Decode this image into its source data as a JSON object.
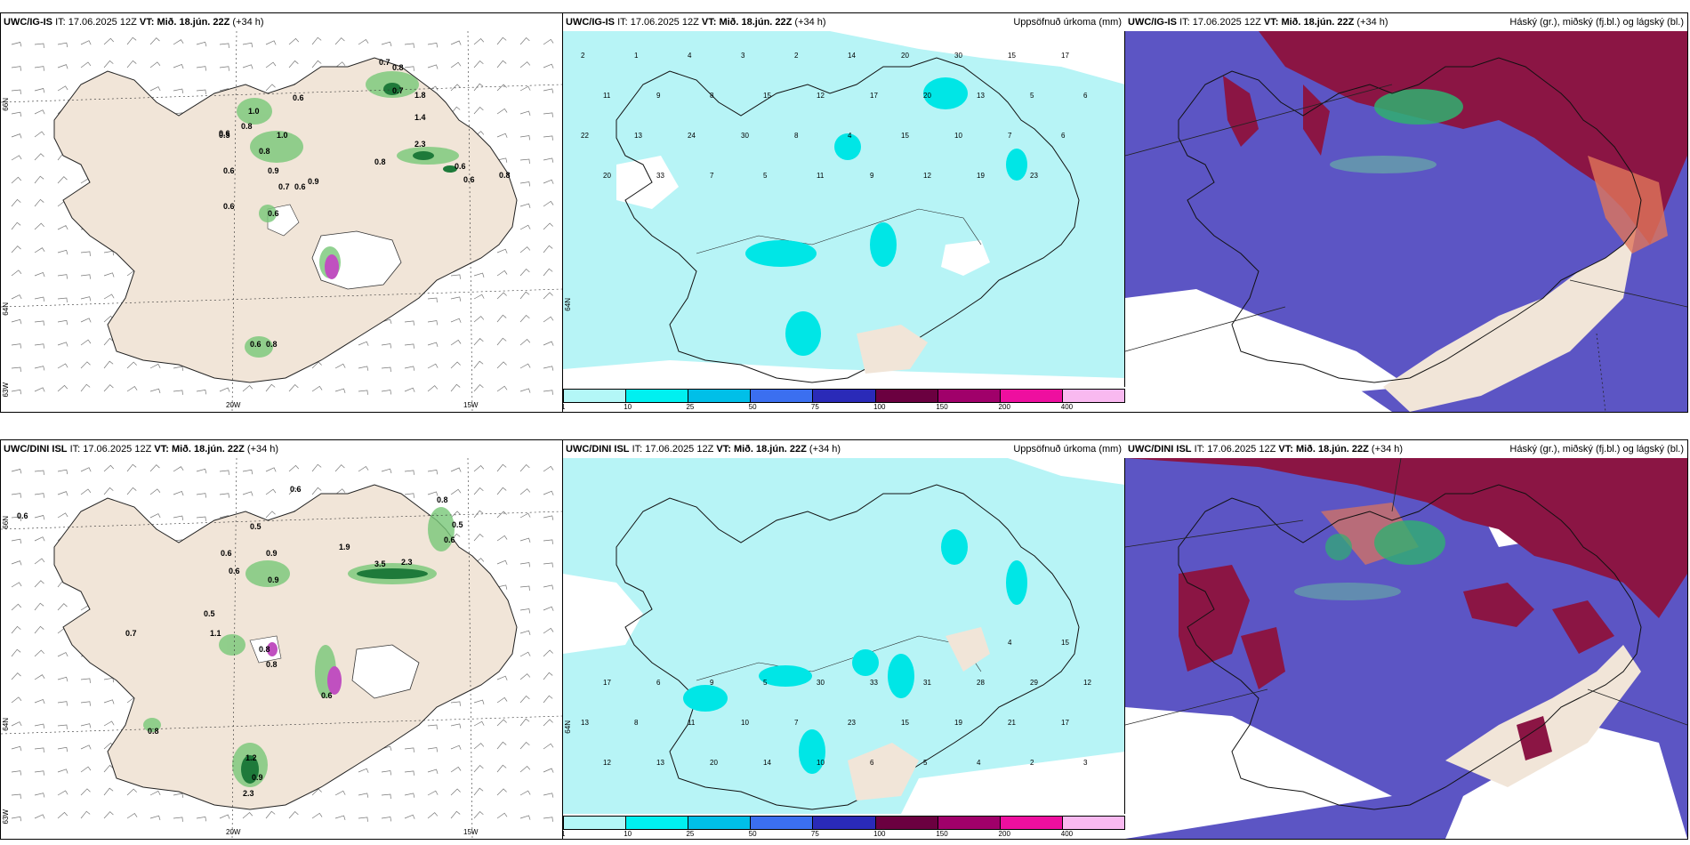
{
  "rows": [
    {
      "model": "UWC/IG-IS",
      "it_label": "IT:",
      "it_value": "17.06.2025 12Z",
      "vt_label": "VT:",
      "vt_value": "Mið. 18.jún. 22Z",
      "lead": "(+34 h)",
      "left_labels": {
        "lat_top": "66N",
        "lat_mid": "64N",
        "lat_bot": "63W",
        "lon_a": "20W",
        "lon_b": "15W"
      },
      "middle_title": "Uppsöfnuð úrkoma (mm)",
      "right_title": "Háský (gr.), miðský (fj.bl.) og lágský (bl.)",
      "mid_lat": "64N",
      "precip_values": [
        "0.7",
        "0.8",
        "0.6",
        "1.0",
        "0.8",
        "0.6",
        "0.7",
        "0.5",
        "1.0",
        "0.8",
        "1.8",
        "0.9",
        "0.6",
        "0.7",
        "0.6",
        "0.9",
        "0.8",
        "2.3",
        "0.6",
        "0.6",
        "0.8",
        "0.6",
        "0.6",
        "0.6",
        "0.8",
        "1.4"
      ],
      "accum_values": [
        "2",
        "1",
        "4",
        "3",
        "2",
        "14",
        "20",
        "30",
        "15",
        "17",
        "11",
        "9",
        "8",
        "15",
        "12",
        "17",
        "20",
        "13",
        "5",
        "6",
        "22",
        "13",
        "24",
        "30",
        "8",
        "4",
        "15",
        "10",
        "7",
        "6",
        "20",
        "33",
        "7",
        "5",
        "11",
        "9",
        "12",
        "19",
        "23"
      ]
    },
    {
      "model": "UWC/DINI ISL",
      "it_label": "IT:",
      "it_value": "17.06.2025 12Z",
      "vt_label": "VT:",
      "vt_value": "Mið. 18.jún. 22Z",
      "lead": "(+34 h)",
      "left_labels": {
        "lat_top": "66N",
        "lat_mid": "64N",
        "lat_bot": "63W",
        "lon_a": "20W",
        "lon_b": "15W"
      },
      "middle_title": "Uppsöfnuð úrkoma (mm)",
      "right_title": "Háský (gr.), miðský (fj.bl.) og lágský (bl.)",
      "mid_lat": "64N",
      "precip_values": [
        "0.6",
        "0.6",
        "0.8",
        "0.5",
        "0.6",
        "0.9",
        "0.5",
        "0.6",
        "1.9",
        "3.5",
        "2.3",
        "0.6",
        "0.9",
        "0.5",
        "1.1",
        "0.8",
        "0.8",
        "0.7",
        "1.2",
        "0.9",
        "2.3",
        "0.8",
        "0.6"
      ],
      "accum_values": [
        "3",
        "2",
        "4",
        "5",
        "6",
        "10",
        "14",
        "20",
        "13",
        "12",
        "17",
        "21",
        "19",
        "15",
        "23",
        "7",
        "10",
        "11",
        "8",
        "13",
        "12",
        "29",
        "28",
        "31",
        "33",
        "30",
        "5",
        "9",
        "6",
        "17",
        "15",
        "4"
      ]
    }
  ],
  "colorbar": {
    "ticks": [
      "1",
      "10",
      "25",
      "50",
      "75",
      "100",
      "150",
      "200",
      "400"
    ],
    "colors": [
      "#b3f7f7",
      "#00f0f0",
      "#00bfe8",
      "#3b6ff0",
      "#2a2ab8",
      "#6b0040",
      "#a0006a",
      "#ee0f9f",
      "#f9b9f0"
    ]
  },
  "colors": {
    "land": "#f1e5d8",
    "cloud_low": "#5c55c4",
    "cloud_mid": "#8b1544",
    "cloud_high": "#3ba56b",
    "precip_light": "#b7eaf0"
  }
}
